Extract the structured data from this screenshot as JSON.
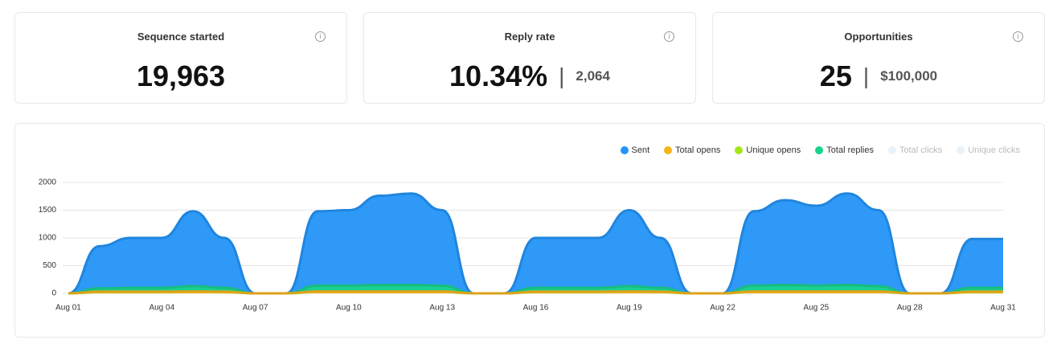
{
  "cards": [
    {
      "title": "Sequence started",
      "value": "19,963"
    },
    {
      "title": "Reply rate",
      "value": "10.34%",
      "secondary": "2,064"
    },
    {
      "title": "Opportunities",
      "value": "25",
      "secondary": "$100,000"
    }
  ],
  "chart_data": {
    "type": "area",
    "categories": [
      "Aug 01",
      null,
      null,
      "Aug 04",
      null,
      null,
      "Aug 07",
      null,
      null,
      "Aug 10",
      null,
      null,
      "Aug 13",
      null,
      null,
      "Aug 16",
      null,
      null,
      "Aug 19",
      null,
      null,
      "Aug 22",
      null,
      null,
      "Aug 25",
      null,
      null,
      "Aug 28",
      null,
      null,
      "Aug 31"
    ],
    "ylim": [
      0,
      2000
    ],
    "yticks": [
      0,
      500,
      1000,
      1500,
      2000
    ],
    "grid": true,
    "series": [
      {
        "name": "Sent",
        "color": "#2394f7",
        "values": [
          0,
          850,
          1000,
          1000,
          1480,
          1000,
          0,
          0,
          1480,
          1500,
          1760,
          1800,
          1500,
          0,
          0,
          1000,
          1000,
          1000,
          1500,
          1000,
          0,
          0,
          1480,
          1680,
          1580,
          1800,
          1500,
          0,
          0,
          980,
          980
        ]
      },
      {
        "name": "Total opens",
        "color": "#f5b51b",
        "values": [
          0,
          30,
          30,
          30,
          35,
          30,
          0,
          0,
          35,
          35,
          35,
          35,
          35,
          0,
          0,
          30,
          30,
          30,
          35,
          30,
          0,
          0,
          35,
          35,
          35,
          35,
          35,
          0,
          0,
          30,
          30
        ]
      },
      {
        "name": "Unique opens",
        "color": "#a4e61a",
        "values": [
          0,
          20,
          20,
          20,
          25,
          20,
          0,
          0,
          25,
          25,
          25,
          25,
          25,
          0,
          0,
          20,
          20,
          20,
          25,
          20,
          0,
          0,
          25,
          25,
          25,
          25,
          25,
          0,
          0,
          20,
          20
        ]
      },
      {
        "name": "Total replies",
        "color": "#19d38c",
        "values": [
          0,
          90,
          100,
          100,
          130,
          100,
          0,
          0,
          140,
          140,
          150,
          150,
          140,
          0,
          0,
          100,
          100,
          100,
          130,
          100,
          0,
          0,
          140,
          150,
          140,
          150,
          130,
          0,
          0,
          100,
          100
        ]
      },
      {
        "name": "Total clicks",
        "color": "#e8f2fb",
        "hidden": true
      },
      {
        "name": "Unique clicks",
        "color": "#e8f2fb",
        "hidden": true
      }
    ]
  }
}
